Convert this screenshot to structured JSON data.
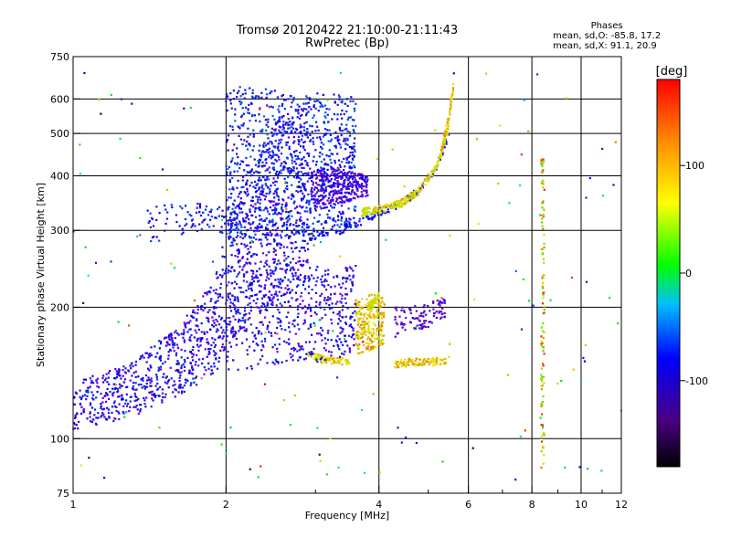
{
  "chart_data": {
    "type": "scatter",
    "title": "Tromsø 20120422 21:10:00-21:11:43",
    "subtitle": "RwPretec (Bp)",
    "xlabel": "Frequency [MHz]",
    "ylabel": "Stationary phase Virtual Height [km]",
    "x_scale": "log",
    "y_scale": "log",
    "xlim": [
      1,
      12
    ],
    "ylim": [
      75,
      750
    ],
    "x_ticks": [
      1,
      2,
      4,
      6,
      8,
      10,
      12
    ],
    "x_minor_ticks": [
      3,
      5,
      7,
      9,
      11
    ],
    "y_ticks": [
      75,
      100,
      200,
      300,
      400,
      500,
      600,
      750
    ],
    "grid_x": [
      2,
      4,
      6,
      8,
      10
    ],
    "grid_y": [
      100,
      200,
      300,
      400,
      500,
      600
    ],
    "phases_info": {
      "heading": "Phases",
      "line1": "mean, sd,O: -85.8, 17.2",
      "line2": "mean, sd,X: 91.1, 20.9"
    },
    "colorbar": {
      "label": "[deg]",
      "range": [
        -180,
        180
      ],
      "ticks": [
        100,
        0,
        -100
      ],
      "colors": [
        "#000000",
        "#4b0082",
        "#0000ff",
        "#00bfff",
        "#00ff00",
        "#ffff00",
        "#ff8c00",
        "#ff0000"
      ]
    },
    "traces": [
      {
        "kind": "band",
        "f": [
          1.0,
          1.3,
          1.6,
          1.9,
          2.0,
          2.2,
          2.6,
          2.9
        ],
        "h_low": [
          105,
          112,
          125,
          140,
          160,
          185,
          210,
          230
        ],
        "h_high": [
          135,
          150,
          180,
          230,
          300,
          420,
          560,
          620
        ],
        "phase": -110,
        "count": 1300
      },
      {
        "kind": "band",
        "f": [
          2.0,
          2.4,
          2.8,
          3.2,
          3.6
        ],
        "h_low": [
          280,
          285,
          290,
          300,
          310
        ],
        "h_high": [
          640,
          640,
          620,
          620,
          610
        ],
        "phase": -95,
        "count": 900
      },
      {
        "kind": "curve",
        "f": [
          2.9,
          3.3,
          3.7,
          4.0,
          4.4,
          4.8,
          5.2,
          5.5
        ],
        "h": [
          290,
          298,
          315,
          330,
          345,
          370,
          420,
          500
        ],
        "phase": -100,
        "count": 160
      },
      {
        "kind": "band",
        "f": [
          2.9,
          3.2,
          3.5,
          3.8
        ],
        "h_low": [
          330,
          340,
          350,
          360
        ],
        "h_high": [
          420,
          420,
          410,
          400
        ],
        "phase": -125,
        "count": 320
      },
      {
        "kind": "curve",
        "f": [
          3.7,
          4.0,
          4.4,
          4.8,
          5.2,
          5.5
        ],
        "h": [
          330,
          335,
          345,
          370,
          420,
          520
        ],
        "phase": 110,
        "count": 240
      },
      {
        "kind": "curve",
        "f": [
          5.3,
          5.5,
          5.6
        ],
        "h": [
          450,
          550,
          640
        ],
        "phase": 120,
        "count": 70
      },
      {
        "kind": "band",
        "f": [
          3.6,
          3.9,
          4.1
        ],
        "h_low": [
          155,
          160,
          165
        ],
        "h_high": [
          210,
          215,
          210
        ],
        "phase": 120,
        "count": 230
      },
      {
        "kind": "curve",
        "f": [
          2.9,
          3.1,
          3.5
        ],
        "h": [
          155,
          152,
          150
        ],
        "phase": 115,
        "count": 90
      },
      {
        "kind": "curve",
        "f": [
          4.3,
          4.7,
          5.1,
          5.5
        ],
        "h": [
          148,
          150,
          150,
          152
        ],
        "phase": 120,
        "count": 110
      },
      {
        "kind": "band",
        "f": [
          2.0,
          2.6,
          3.2,
          3.6
        ],
        "h_low": [
          140,
          150,
          150,
          160
        ],
        "h_high": [
          250,
          260,
          250,
          250
        ],
        "phase": -110,
        "count": 500
      },
      {
        "kind": "curve",
        "f": [
          3.8,
          3.9,
          4.0
        ],
        "h": [
          200,
          205,
          212
        ],
        "phase": 110,
        "count": 60
      },
      {
        "kind": "band",
        "f": [
          4.3,
          4.6,
          5.0,
          5.4
        ],
        "h_low": [
          170,
          175,
          180,
          190
        ],
        "h_high": [
          200,
          200,
          205,
          210
        ],
        "phase": -130,
        "count": 100
      },
      {
        "kind": "vline",
        "f": 8.4,
        "h_low": 85,
        "h_high": 440,
        "phase": 110,
        "count": 110
      },
      {
        "kind": "band",
        "f": [
          1.4,
          1.8,
          2.2
        ],
        "h_low": [
          280,
          300,
          290
        ],
        "h_high": [
          340,
          350,
          320
        ],
        "phase": -100,
        "count": 120
      },
      {
        "kind": "scatter",
        "f": [
          1.0,
          12.0
        ],
        "h": [
          80,
          700
        ],
        "phase_range": [
          -180,
          180
        ],
        "count": 150
      }
    ]
  }
}
